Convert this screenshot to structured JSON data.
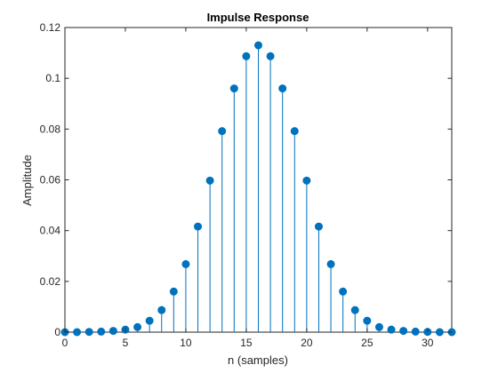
{
  "chart_data": {
    "type": "stem",
    "title": "Impulse Response",
    "xlabel": "n (samples)",
    "ylabel": "Amplitude",
    "xlim": [
      0,
      32
    ],
    "ylim": [
      0,
      0.12
    ],
    "xticks": [
      "0",
      "5",
      "10",
      "15",
      "20",
      "25",
      "30"
    ],
    "yticks": [
      "0",
      "0.02",
      "0.04",
      "0.06",
      "0.08",
      "0.1",
      "0.12"
    ],
    "grid": false,
    "color": "#0072BD",
    "x": [
      0,
      1,
      2,
      3,
      4,
      5,
      6,
      7,
      8,
      9,
      10,
      11,
      12,
      13,
      14,
      15,
      16,
      17,
      18,
      19,
      20,
      21,
      22,
      23,
      24,
      25,
      26,
      27,
      28,
      29,
      30,
      31,
      32
    ],
    "y": [
      0,
      0,
      0.0001,
      0.0002,
      0.0005,
      0.001,
      0.002,
      0.0045,
      0.0087,
      0.016,
      0.0268,
      0.0416,
      0.0597,
      0.0792,
      0.096,
      0.1087,
      0.113,
      0.1087,
      0.096,
      0.0792,
      0.0597,
      0.0416,
      0.0268,
      0.016,
      0.0087,
      0.0045,
      0.002,
      0.001,
      0.0005,
      0.0002,
      0.0001,
      0,
      0
    ]
  }
}
